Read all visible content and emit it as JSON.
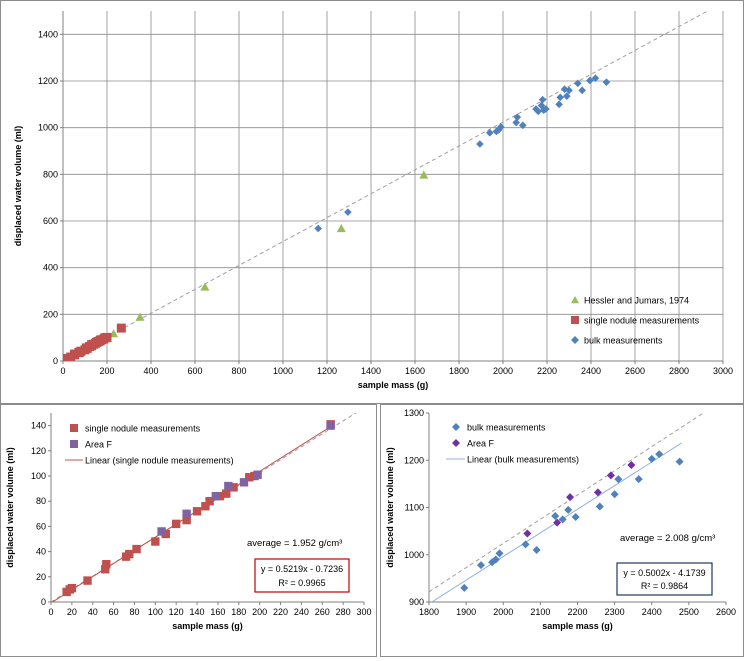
{
  "chart_data": [
    {
      "id": "main",
      "type": "scatter",
      "xlabel": "sample mass (g)",
      "ylabel": "displaced water volume (ml)",
      "xlim": [
        0,
        3000
      ],
      "ylim": [
        0,
        1500
      ],
      "xticks": [
        0,
        200,
        400,
        600,
        800,
        1000,
        1200,
        1400,
        1600,
        1800,
        2000,
        2200,
        2400,
        2600,
        2800,
        3000
      ],
      "yticks": [
        0,
        200,
        400,
        600,
        800,
        1000,
        1200,
        1400
      ],
      "grid": true,
      "legend_position": "bottom-right",
      "reference_line": {
        "x": [
          0,
          3000
        ],
        "y": [
          0,
          1536
        ],
        "style": "dashed",
        "color": "#a0a0a0"
      },
      "series": [
        {
          "name": "Hessler and Jumars, 1974",
          "marker": "triangle",
          "color": "#9bbb59",
          "points": [
            [
              230,
              117
            ],
            [
              350,
              188
            ],
            [
              645,
              317
            ],
            [
              1265,
              568
            ],
            [
              1640,
              797
            ]
          ]
        },
        {
          "name": "single nodule measurements",
          "marker": "square",
          "color": "#c0504d",
          "points": [
            [
              15,
              8
            ],
            [
              18,
              10
            ],
            [
              20,
              11
            ],
            [
              35,
              17
            ],
            [
              52,
              26
            ],
            [
              53,
              30
            ],
            [
              72,
              36
            ],
            [
              75,
              38
            ],
            [
              82,
              42
            ],
            [
              100,
              48
            ],
            [
              106,
              56
            ],
            [
              110,
              54
            ],
            [
              120,
              62
            ],
            [
              130,
              65
            ],
            [
              130,
              70
            ],
            [
              140,
              72
            ],
            [
              148,
              76
            ],
            [
              152,
              80
            ],
            [
              158,
              82
            ],
            [
              162,
              84
            ],
            [
              168,
              86
            ],
            [
              170,
              90
            ],
            [
              175,
              91
            ],
            [
              185,
              94
            ],
            [
              190,
              99
            ],
            [
              195,
              100
            ],
            [
              200,
              101
            ],
            [
              265,
              141
            ]
          ]
        },
        {
          "name": "bulk measurements",
          "marker": "diamond",
          "color": "#4f81bd",
          "points": [
            [
              1160,
              568
            ],
            [
              1295,
              638
            ],
            [
              1895,
              930
            ],
            [
              1940,
              978
            ],
            [
              1970,
              984
            ],
            [
              1980,
              990
            ],
            [
              1990,
              1003
            ],
            [
              2060,
              1022
            ],
            [
              2065,
              1045
            ],
            [
              2090,
              1010
            ],
            [
              2150,
              1080
            ],
            [
              2160,
              1070
            ],
            [
              2175,
              1095
            ],
            [
              2180,
              1120
            ],
            [
              2185,
              1075
            ],
            [
              2195,
              1080
            ],
            [
              2255,
              1100
            ],
            [
              2260,
              1130
            ],
            [
              2280,
              1165
            ],
            [
              2290,
              1135
            ],
            [
              2300,
              1160
            ],
            [
              2340,
              1190
            ],
            [
              2360,
              1160
            ],
            [
              2395,
              1202
            ],
            [
              2420,
              1212
            ],
            [
              2470,
              1195
            ]
          ]
        }
      ]
    },
    {
      "id": "single",
      "type": "scatter",
      "xlabel": "sample mass (g)",
      "ylabel": "displaced water volume (ml)",
      "xlim": [
        0,
        300
      ],
      "ylim": [
        0,
        150
      ],
      "xticks": [
        0,
        20,
        40,
        60,
        80,
        100,
        120,
        140,
        160,
        180,
        200,
        220,
        240,
        260,
        280,
        300
      ],
      "yticks": [
        0,
        20,
        40,
        60,
        80,
        100,
        120,
        140
      ],
      "grid": false,
      "legend_position": "top-left",
      "legend": [
        "single nodule measurements",
        "Area F",
        "Linear (single nodule measurements)"
      ],
      "reference_line": {
        "x": [
          0,
          300
        ],
        "y": [
          0,
          154
        ],
        "style": "dashed",
        "color": "#a0a0a0"
      },
      "trendline": {
        "slope": 0.5219,
        "intercept": -0.7236,
        "x": [
          0,
          268
        ],
        "color": "#c0504d"
      },
      "series": [
        {
          "name": "single nodule measurements",
          "marker": "square",
          "color": "#c0504d",
          "points": [
            [
              15,
              8
            ],
            [
              18,
              10
            ],
            [
              20,
              11
            ],
            [
              35,
              17
            ],
            [
              52,
              26
            ],
            [
              53,
              30
            ],
            [
              72,
              36
            ],
            [
              75,
              38
            ],
            [
              82,
              42
            ],
            [
              100,
              48
            ],
            [
              110,
              54
            ],
            [
              120,
              62
            ],
            [
              130,
              65
            ],
            [
              140,
              72
            ],
            [
              148,
              76
            ],
            [
              152,
              80
            ],
            [
              162,
              84
            ],
            [
              168,
              86
            ],
            [
              175,
              91
            ],
            [
              190,
              99
            ],
            [
              195,
              100
            ],
            [
              268,
              141
            ]
          ]
        },
        {
          "name": "Area F",
          "marker": "square",
          "color": "#8064a2",
          "points": [
            [
              106,
              56
            ],
            [
              130,
              70
            ],
            [
              158,
              84
            ],
            [
              170,
              92
            ],
            [
              185,
              95
            ],
            [
              198,
              101
            ],
            [
              268,
              140
            ]
          ]
        }
      ],
      "annotations": {
        "average": "average = 1.952 g/cm³",
        "equation": "y = 0.5219x - 0.7236",
        "r2": "R² = 0.9965"
      }
    },
    {
      "id": "bulk",
      "type": "scatter",
      "xlabel": "sample mass (g)",
      "ylabel": "displaced water volume (ml)",
      "xlim": [
        1800,
        2600
      ],
      "ylim": [
        900,
        1300
      ],
      "xticks": [
        1800,
        1900,
        2000,
        2100,
        2200,
        2300,
        2400,
        2500,
        2600
      ],
      "yticks": [
        900,
        1000,
        1100,
        1200,
        1300
      ],
      "grid": false,
      "legend_position": "top-left",
      "legend": [
        "bulk measurements",
        "Area F",
        "Linear (bulk measurements)"
      ],
      "reference_line": {
        "x": [
          1800,
          2600
        ],
        "y": [
          921.6,
          1331.2
        ],
        "style": "dashed",
        "color": "#a0a0a0"
      },
      "trendline": {
        "slope": 0.5002,
        "intercept": -4.1739,
        "x": [
          1800,
          2480
        ],
        "color": "#8db3e2"
      },
      "series": [
        {
          "name": "bulk measurements",
          "marker": "diamond",
          "color": "#4f81bd",
          "points": [
            [
              1895,
              930
            ],
            [
              1940,
              978
            ],
            [
              1970,
              984
            ],
            [
              1980,
              990
            ],
            [
              1990,
              1003
            ],
            [
              2060,
              1022
            ],
            [
              2090,
              1010
            ],
            [
              2140,
              1082
            ],
            [
              2160,
              1075
            ],
            [
              2175,
              1095
            ],
            [
              2195,
              1080
            ],
            [
              2260,
              1102
            ],
            [
              2300,
              1128
            ],
            [
              2310,
              1160
            ],
            [
              2365,
              1160
            ],
            [
              2400,
              1203
            ],
            [
              2420,
              1213
            ],
            [
              2475,
              1197
            ]
          ]
        },
        {
          "name": "Area F",
          "marker": "diamond",
          "color": "#7030a0",
          "points": [
            [
              2065,
              1045
            ],
            [
              2145,
              1068
            ],
            [
              2180,
              1122
            ],
            [
              2255,
              1132
            ],
            [
              2290,
              1168
            ],
            [
              2345,
              1190
            ]
          ]
        }
      ],
      "annotations": {
        "average": "average = 2.008 g/cm³",
        "equation": "y = 0.5002x - 4.1739",
        "r2": "R² = 0.9864"
      }
    }
  ]
}
